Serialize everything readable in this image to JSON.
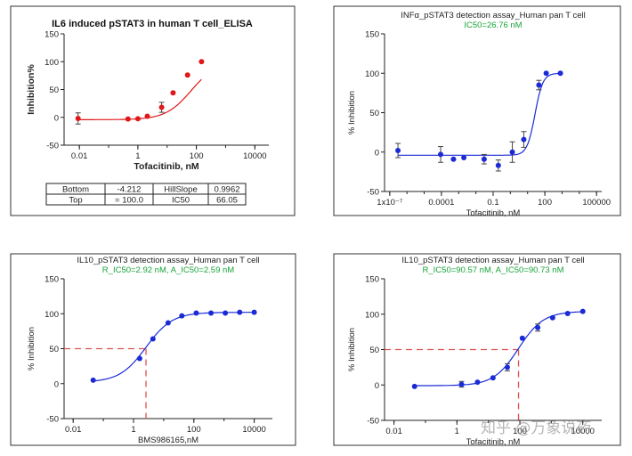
{
  "watermark": "知乎 @万象说药",
  "colors": {
    "red": "#e01818",
    "blue": "#1a2bd6",
    "green": "#19a33a",
    "dash": "#e05050",
    "frame": "#333333"
  },
  "chart_data": [
    {
      "id": "p1",
      "type": "scatter",
      "title": "IL6 induced pSTAT3 in human T cell_ELISA",
      "xlabel": "Tofacitinib, nM",
      "ylabel": "Inhibition%",
      "xscale": "log",
      "xlim": [
        0.003,
        30000
      ],
      "ylim": [
        -50,
        150
      ],
      "xticks": [
        0.01,
        1,
        100,
        10000
      ],
      "xticklabels": [
        "0.01",
        "1",
        "100",
        "10000"
      ],
      "yticks": [
        -50,
        0,
        50,
        100,
        150
      ],
      "yticklabels": [
        "-50",
        "0",
        "50",
        "100",
        "150"
      ],
      "fit": {
        "bottom": -4.212,
        "top": 100.0,
        "ic50": 66.05,
        "hill": 0.9962
      },
      "points": [
        {
          "x": 0.009,
          "y": -2,
          "err": 10
        },
        {
          "x": 0.46,
          "y": -3,
          "err": 0
        },
        {
          "x": 1.0,
          "y": -2.5,
          "err": 0
        },
        {
          "x": 2.1,
          "y": 2,
          "err": 0
        },
        {
          "x": 6.5,
          "y": 18,
          "err": 9
        },
        {
          "x": 16,
          "y": 44,
          "err": 0
        },
        {
          "x": 50,
          "y": 76,
          "err": 0
        },
        {
          "x": 150,
          "y": 100,
          "err": 0
        }
      ],
      "table": [
        [
          "Bottom",
          "-4.212",
          "HillSlope",
          "0.9962"
        ],
        [
          "Top",
          "= 100.0",
          "IC50",
          "66.05"
        ]
      ]
    },
    {
      "id": "p2",
      "type": "scatter",
      "title": "INFα_pSTAT3 detection assay_Human pan T cell",
      "subtitle": "IC50=26.76 nM",
      "xlabel": "Tofacitinib, nM",
      "ylabel": "% Inhibition",
      "xscale": "log",
      "xlim": [
        5e-08,
        200000
      ],
      "ylim": [
        -50,
        150
      ],
      "xticks": [
        1e-07,
        0.0001,
        0.1,
        100,
        100000
      ],
      "xticklabels": [
        "1x10⁻⁷",
        "0.0001",
        "0.1",
        "100",
        "100000"
      ],
      "yticks": [
        -50,
        0,
        50,
        100,
        150
      ],
      "yticklabels": [
        "-50",
        "0",
        "50",
        "100",
        "150"
      ],
      "fit": {
        "bottom": -4,
        "top": 100,
        "ic50": 26.76,
        "hill": 1.9
      },
      "points": [
        {
          "x": 3e-07,
          "y": 2,
          "err": 9
        },
        {
          "x": 9e-05,
          "y": -3,
          "err": 10
        },
        {
          "x": 0.0005,
          "y": -9,
          "err": 0
        },
        {
          "x": 0.002,
          "y": -7,
          "err": 0
        },
        {
          "x": 0.03,
          "y": -9,
          "err": 6
        },
        {
          "x": 0.2,
          "y": -17,
          "err": 7
        },
        {
          "x": 1.3,
          "y": 0,
          "err": 13
        },
        {
          "x": 6,
          "y": 16,
          "err": 10
        },
        {
          "x": 45,
          "y": 85,
          "err": 6
        },
        {
          "x": 120,
          "y": 100,
          "err": 0
        },
        {
          "x": 800,
          "y": 100,
          "err": 0
        }
      ]
    },
    {
      "id": "p3",
      "type": "scatter",
      "title": "IL10_pSTAT3 detection assay_Human pan T cell",
      "subtitle": "R_IC50=2.92 nM, A_IC50=2.59 nM",
      "xlabel": "BMS986165,nM",
      "ylabel": "% Inhibition",
      "xscale": "log",
      "xlim": [
        0.005,
        40000
      ],
      "ylim": [
        -50,
        150
      ],
      "xticks": [
        0.01,
        1,
        100,
        10000
      ],
      "xticklabels": [
        "0.01",
        "1",
        "100",
        "10000"
      ],
      "yticks": [
        -50,
        0,
        50,
        100,
        150
      ],
      "yticklabels": [
        "-50",
        "0",
        "50",
        "100",
        "150"
      ],
      "fit": {
        "bottom": 2,
        "top": 102,
        "ic50": 2.59,
        "hill": 1.0
      },
      "ic50_guide": {
        "x": 2.59,
        "y": 50
      },
      "points": [
        {
          "x": 0.046,
          "y": 5,
          "err": 0
        },
        {
          "x": 1.6,
          "y": 36,
          "err": 0
        },
        {
          "x": 4.4,
          "y": 64,
          "err": 0
        },
        {
          "x": 14,
          "y": 87,
          "err": 0
        },
        {
          "x": 40,
          "y": 97,
          "err": 0
        },
        {
          "x": 120,
          "y": 101,
          "err": 0
        },
        {
          "x": 370,
          "y": 101,
          "err": 0
        },
        {
          "x": 1100,
          "y": 101,
          "err": 0
        },
        {
          "x": 3300,
          "y": 102,
          "err": 0
        },
        {
          "x": 10000,
          "y": 102,
          "err": 0
        }
      ]
    },
    {
      "id": "p4",
      "type": "scatter",
      "title": "IL10_pSTAT3 detection assay_Human pan T cell",
      "subtitle": "R_IC50=90.57 nM, A_IC50=90.73 nM",
      "xlabel": "Tofacitinib, nM",
      "ylabel": "% Inhibition",
      "xscale": "log",
      "xlim": [
        0.005,
        40000
      ],
      "ylim": [
        -50,
        150
      ],
      "xticks": [
        0.01,
        1,
        100,
        10000
      ],
      "xticklabels": [
        "0.01",
        "1",
        "100",
        "10000"
      ],
      "yticks": [
        -50,
        0,
        50,
        100,
        150
      ],
      "yticklabels": [
        "-50",
        "0",
        "50",
        "100",
        "150"
      ],
      "fit": {
        "bottom": -1,
        "top": 104,
        "ic50": 90.73,
        "hill": 1.1
      },
      "ic50_guide": {
        "x": 90.73,
        "y": 50
      },
      "points": [
        {
          "x": 0.045,
          "y": -2,
          "err": 0
        },
        {
          "x": 1.4,
          "y": 1,
          "err": 4
        },
        {
          "x": 4.5,
          "y": 4,
          "err": 0
        },
        {
          "x": 14,
          "y": 10,
          "err": 0
        },
        {
          "x": 40,
          "y": 25,
          "err": 5
        },
        {
          "x": 120,
          "y": 66,
          "err": 0
        },
        {
          "x": 370,
          "y": 81,
          "err": 5
        },
        {
          "x": 1100,
          "y": 95,
          "err": 0
        },
        {
          "x": 3300,
          "y": 101,
          "err": 0
        },
        {
          "x": 10000,
          "y": 104,
          "err": 0
        }
      ]
    }
  ]
}
